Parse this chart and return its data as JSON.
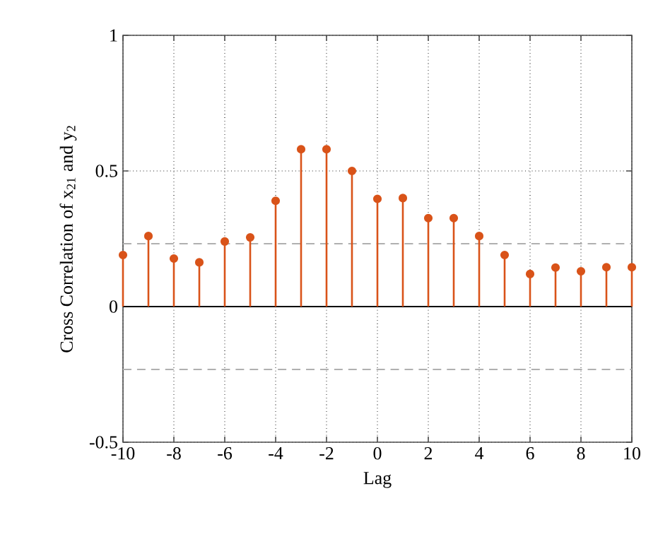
{
  "chart_data": {
    "type": "lollipop",
    "xlabel": "Lag",
    "ylabel": "Cross Correlation of x$_{21}$ and y$_{2}$",
    "x": [
      -10,
      -9,
      -8,
      -7,
      -6,
      -5,
      -4,
      -3,
      -2,
      -1,
      0,
      1,
      2,
      3,
      4,
      5,
      6,
      7,
      8,
      9,
      10
    ],
    "values": [
      0.19,
      0.26,
      0.177,
      0.163,
      0.24,
      0.255,
      0.39,
      0.58,
      0.58,
      0.5,
      0.397,
      0.4,
      0.326,
      0.326,
      0.26,
      0.19,
      0.12,
      0.144,
      0.13,
      0.145,
      0.145
    ],
    "color": "#d95319",
    "marker": "circle",
    "xlim": [
      -10,
      10
    ],
    "ylim": [
      -0.5,
      1
    ],
    "xticks": [
      -10,
      -8,
      -6,
      -4,
      -2,
      0,
      2,
      4,
      6,
      8,
      10
    ],
    "yticks": [
      -0.5,
      0,
      0.5,
      1
    ],
    "grid": true,
    "ref_lines": [
      {
        "axis": "y",
        "value": 0,
        "color": "#000000",
        "line_style": "solid"
      },
      {
        "axis": "y",
        "value": 0.232,
        "color": "#b0b0b0",
        "line_style": "dashed"
      },
      {
        "axis": "y",
        "value": -0.232,
        "color": "#b0b0b0",
        "line_style": "dashed"
      }
    ]
  }
}
